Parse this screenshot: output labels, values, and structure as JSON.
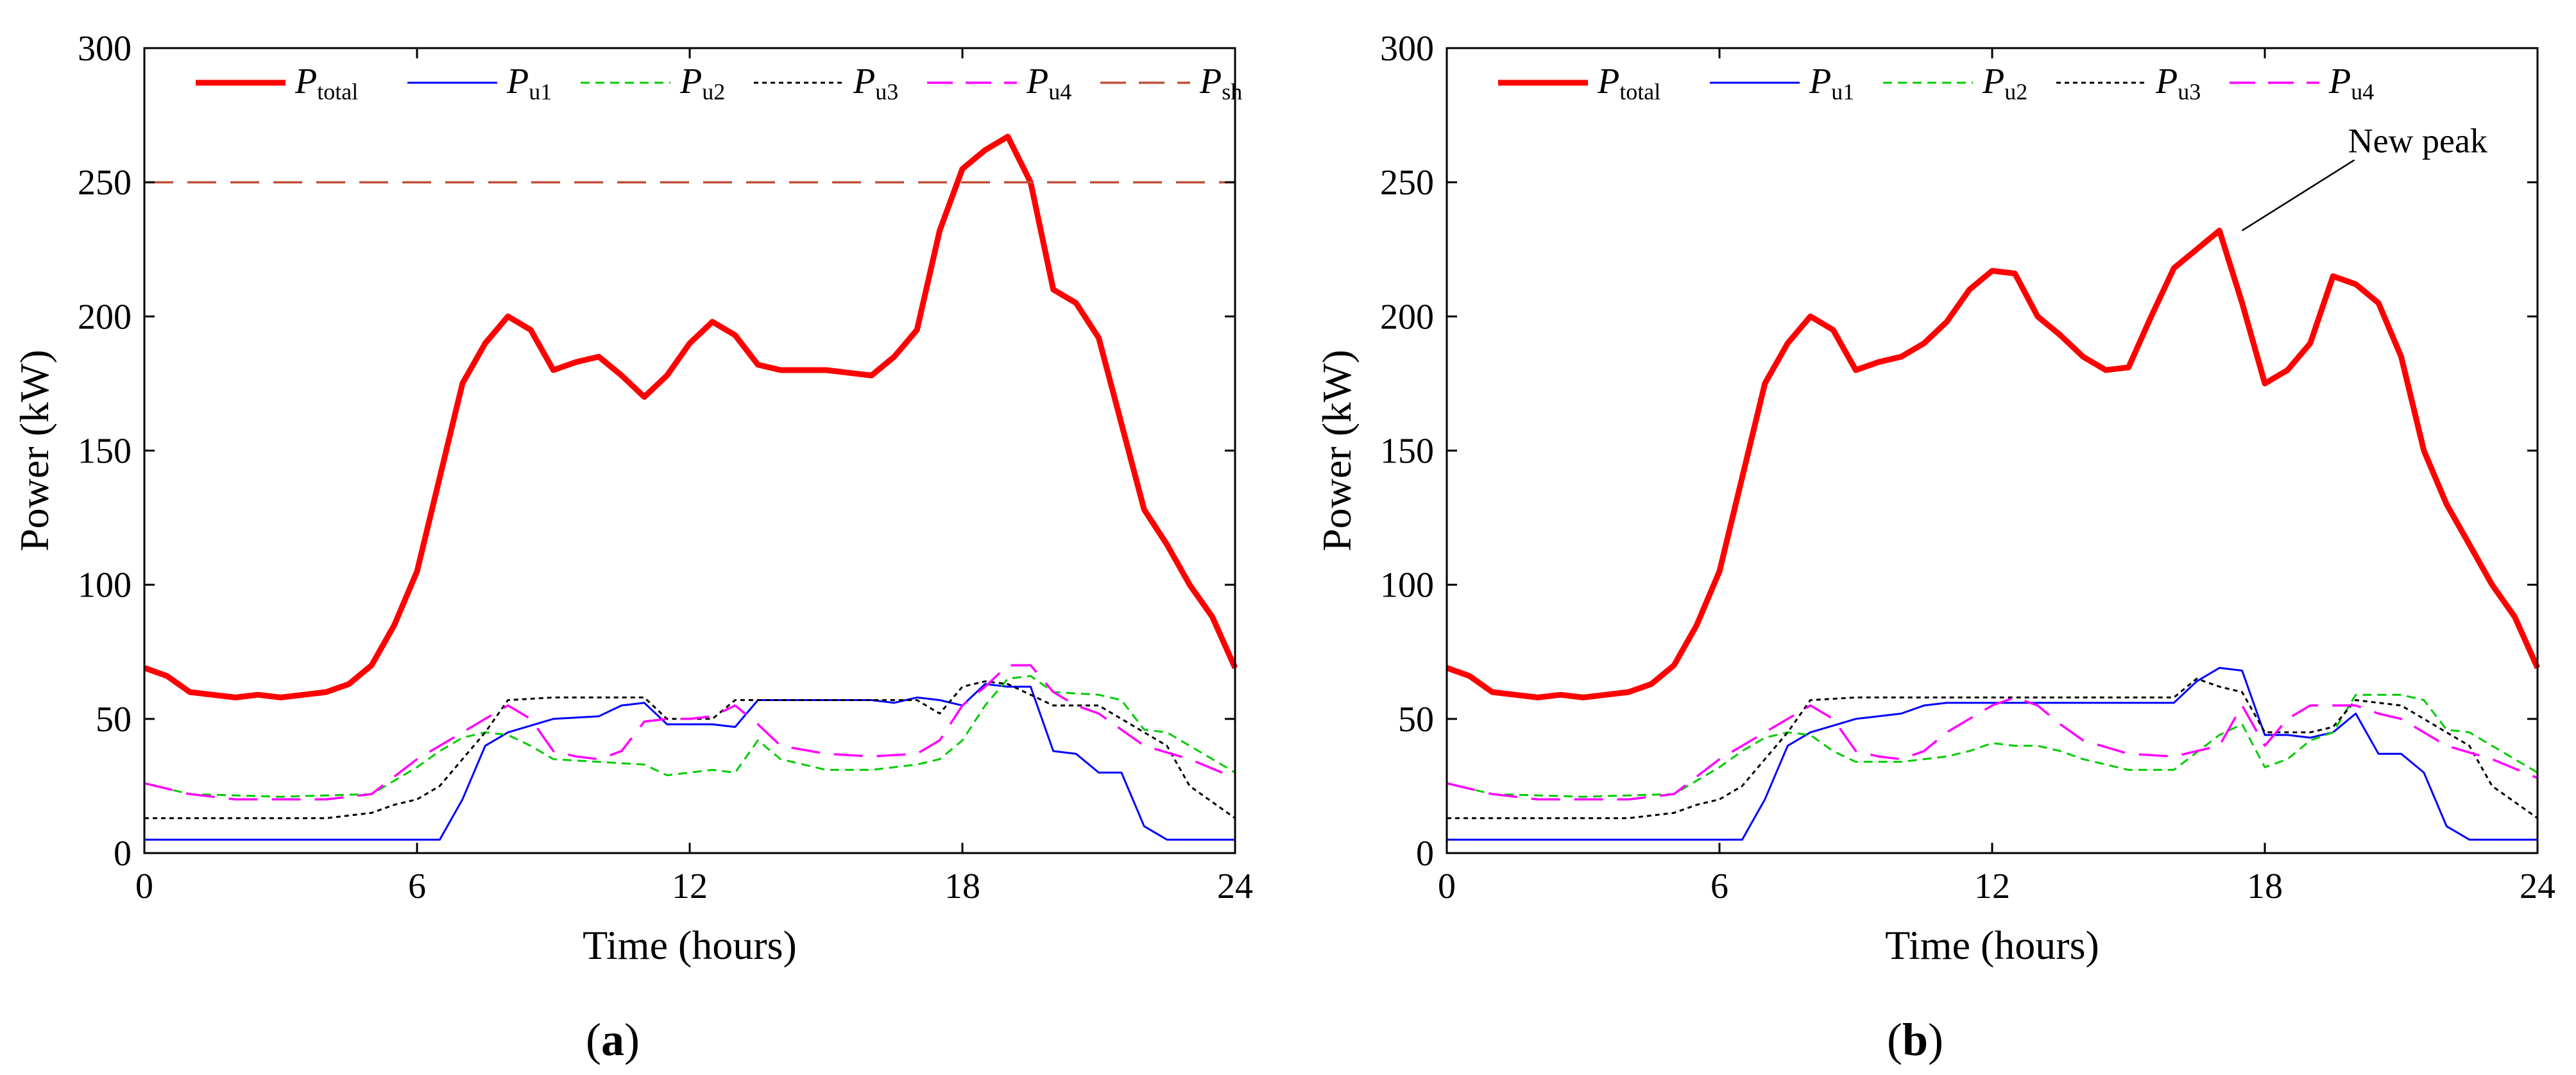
{
  "colors": {
    "P_total": "#ff0000",
    "P_u1": "#0000ff",
    "P_u2": "#00cc00",
    "P_u3": "#000000",
    "P_u4": "#ff00ff",
    "P_sh": "#c0503c"
  },
  "chart_data": [
    {
      "type": "line",
      "panel_label_open": "(",
      "panel_label": "a",
      "panel_label_close": ")",
      "xlabel": "Time (hours)",
      "ylabel": "Power (kW)",
      "xlim": [
        0,
        24
      ],
      "ylim": [
        0,
        300
      ],
      "xticks": [
        0,
        6,
        12,
        18,
        24
      ],
      "yticks": [
        0,
        50,
        100,
        150,
        200,
        250,
        300
      ],
      "grid": false,
      "legend_position": "top",
      "legend": [
        {
          "key": "P_total",
          "main": "P",
          "sub": "total"
        },
        {
          "key": "P_u1",
          "main": "P",
          "sub": "u1"
        },
        {
          "key": "P_u2",
          "main": "P",
          "sub": "u2"
        },
        {
          "key": "P_u3",
          "main": "P",
          "sub": "u3"
        },
        {
          "key": "P_u4",
          "main": "P",
          "sub": "u4"
        },
        {
          "key": "P_sh",
          "main": "P",
          "sub": "sh"
        }
      ],
      "series": [
        {
          "key": "P_total",
          "name": "P_total",
          "style": "solid-thick",
          "x": [
            0,
            0.5,
            1,
            1.5,
            2,
            2.5,
            3,
            3.5,
            4,
            4.5,
            5,
            5.5,
            6,
            6.5,
            7,
            7.5,
            8,
            8.5,
            9,
            9.5,
            10,
            10.5,
            11,
            11.5,
            12,
            12.5,
            13,
            13.5,
            14,
            14.5,
            15,
            15.5,
            16,
            16.5,
            17,
            17.5,
            18,
            18.5,
            19,
            19.5,
            20,
            20.5,
            21,
            21.5,
            22,
            22.5,
            23,
            23.5,
            24
          ],
          "values": [
            69,
            66,
            60,
            59,
            58,
            59,
            58,
            59,
            60,
            63,
            70,
            85,
            105,
            140,
            175,
            190,
            200,
            195,
            180,
            183,
            185,
            178,
            170,
            178,
            190,
            198,
            193,
            182,
            180,
            180,
            180,
            179,
            178,
            185,
            195,
            232,
            255,
            262,
            267,
            250,
            210,
            205,
            192,
            160,
            128,
            115,
            100,
            88,
            69
          ]
        },
        {
          "key": "P_u1",
          "name": "P_u1",
          "style": "solid-thin",
          "x": [
            0,
            3,
            6,
            6.5,
            7,
            7.5,
            8,
            9,
            10,
            10.5,
            11,
            11.5,
            12,
            12.5,
            13,
            13.5,
            14,
            15,
            16,
            16.5,
            17,
            17.5,
            18,
            18.5,
            19,
            19.5,
            20,
            20.5,
            21,
            21.5,
            22,
            22.5,
            24
          ],
          "values": [
            5,
            5,
            5,
            5,
            20,
            40,
            45,
            50,
            51,
            55,
            56,
            48,
            48,
            48,
            47,
            57,
            57,
            57,
            57,
            56,
            58,
            57,
            55,
            63,
            62,
            62,
            38,
            37,
            30,
            30,
            10,
            5,
            5
          ]
        },
        {
          "key": "P_u2",
          "name": "P_u2",
          "style": "dashed",
          "x": [
            0,
            1,
            3,
            5,
            6,
            6.5,
            7,
            7.5,
            8,
            8.5,
            9,
            10,
            11,
            11.5,
            12,
            12.5,
            13,
            13.5,
            14,
            15,
            16,
            17,
            17.5,
            18,
            18.5,
            19,
            19.5,
            20,
            21,
            21.5,
            22,
            22.5,
            23,
            24
          ],
          "values": [
            26,
            22,
            21,
            22,
            32,
            38,
            43,
            45,
            44,
            40,
            35,
            34,
            33,
            29,
            30,
            31,
            30,
            42,
            35,
            31,
            31,
            33,
            35,
            42,
            55,
            65,
            66,
            60,
            59,
            57,
            46,
            45,
            40,
            30
          ]
        },
        {
          "key": "P_u3",
          "name": "P_u3",
          "style": "dotted",
          "x": [
            0,
            2,
            4,
            5,
            5.5,
            6,
            6.5,
            7,
            7.5,
            8,
            9,
            10,
            11,
            11.5,
            12,
            12.5,
            13,
            14,
            15,
            16,
            17,
            17.5,
            18,
            18.5,
            19,
            19.5,
            20,
            21,
            21.5,
            22,
            22.5,
            23,
            24
          ],
          "values": [
            13,
            13,
            13,
            15,
            18,
            20,
            25,
            35,
            45,
            57,
            58,
            58,
            58,
            50,
            50,
            50,
            57,
            57,
            57,
            57,
            57,
            52,
            62,
            64,
            63,
            59,
            55,
            55,
            50,
            45,
            40,
            25,
            13
          ]
        },
        {
          "key": "P_u4",
          "name": "P_u4",
          "style": "long-dashed",
          "x": [
            0,
            1,
            2,
            3,
            4,
            5,
            6,
            6.5,
            7,
            7.5,
            8,
            8.5,
            9,
            9.5,
            10,
            10.5,
            11,
            11.5,
            12,
            12.5,
            13,
            13.5,
            14,
            15,
            16,
            17,
            17.5,
            18,
            18.5,
            19,
            19.5,
            20,
            20.5,
            21,
            22,
            23,
            24
          ],
          "values": [
            26,
            22,
            20,
            20,
            20,
            22,
            35,
            40,
            45,
            50,
            55,
            50,
            38,
            36,
            35,
            38,
            49,
            50,
            50,
            51,
            55,
            48,
            40,
            37,
            36,
            37,
            42,
            55,
            62,
            70,
            70,
            60,
            55,
            52,
            40,
            35,
            28
          ]
        },
        {
          "key": "P_sh",
          "name": "P_sh",
          "style": "threshold",
          "x": [
            0,
            24
          ],
          "values": [
            250,
            250
          ]
        }
      ],
      "annotation": null
    },
    {
      "type": "line",
      "panel_label_open": "(",
      "panel_label": "b",
      "panel_label_close": ")",
      "xlabel": "Time (hours)",
      "ylabel": "Power (kW)",
      "xlim": [
        0,
        24
      ],
      "ylim": [
        0,
        300
      ],
      "xticks": [
        0,
        6,
        12,
        18,
        24
      ],
      "yticks": [
        0,
        50,
        100,
        150,
        200,
        250,
        300
      ],
      "grid": false,
      "legend_position": "top",
      "legend": [
        {
          "key": "P_total",
          "main": "P",
          "sub": "total"
        },
        {
          "key": "P_u1",
          "main": "P",
          "sub": "u1"
        },
        {
          "key": "P_u2",
          "main": "P",
          "sub": "u2"
        },
        {
          "key": "P_u3",
          "main": "P",
          "sub": "u3"
        },
        {
          "key": "P_u4",
          "main": "P",
          "sub": "u4"
        }
      ],
      "series": [
        {
          "key": "P_total",
          "name": "P_total",
          "style": "solid-thick",
          "x": [
            0,
            0.5,
            1,
            1.5,
            2,
            2.5,
            3,
            3.5,
            4,
            4.5,
            5,
            5.5,
            6,
            6.5,
            7,
            7.5,
            8,
            8.5,
            9,
            9.5,
            10,
            10.5,
            11,
            11.5,
            12,
            12.5,
            13,
            13.5,
            14,
            14.5,
            15,
            15.5,
            16,
            16.5,
            17,
            17.5,
            18,
            18.5,
            19,
            19.5,
            20,
            20.5,
            21,
            21.5,
            22,
            22.5,
            23,
            23.5,
            24
          ],
          "values": [
            69,
            66,
            60,
            59,
            58,
            59,
            58,
            59,
            60,
            63,
            70,
            85,
            105,
            140,
            175,
            190,
            200,
            195,
            180,
            183,
            185,
            190,
            198,
            210,
            217,
            216,
            200,
            193,
            185,
            180,
            181,
            200,
            218,
            225,
            232,
            205,
            175,
            180,
            190,
            215,
            212,
            205,
            185,
            150,
            130,
            115,
            100,
            88,
            69
          ]
        },
        {
          "key": "P_u1",
          "name": "P_u1",
          "style": "solid-thin",
          "x": [
            0,
            3,
            6,
            6.5,
            7,
            7.5,
            8,
            9,
            10,
            10.5,
            11,
            12,
            13,
            14,
            15,
            16,
            16.5,
            17,
            17.5,
            18,
            18.5,
            19,
            19.5,
            20,
            20.5,
            21,
            21.5,
            22,
            22.5,
            24
          ],
          "values": [
            5,
            5,
            5,
            5,
            20,
            40,
            45,
            50,
            52,
            55,
            56,
            56,
            56,
            56,
            56,
            56,
            64,
            69,
            68,
            44,
            44,
            43,
            45,
            52,
            37,
            37,
            30,
            10,
            5,
            5
          ]
        },
        {
          "key": "P_u2",
          "name": "P_u2",
          "style": "dashed",
          "x": [
            0,
            1,
            3,
            5,
            6,
            6.5,
            7,
            7.5,
            8,
            8.5,
            9,
            10,
            11,
            11.5,
            12,
            12.5,
            13,
            13.5,
            14,
            15,
            16,
            17,
            17.5,
            18,
            18.5,
            19,
            19.5,
            20,
            21,
            21.5,
            22,
            22.5,
            23,
            24
          ],
          "values": [
            26,
            22,
            21,
            22,
            32,
            38,
            43,
            45,
            44,
            38,
            34,
            34,
            36,
            38,
            41,
            40,
            40,
            38,
            35,
            31,
            31,
            44,
            48,
            32,
            35,
            42,
            45,
            59,
            59,
            57,
            46,
            45,
            40,
            30
          ]
        },
        {
          "key": "P_u3",
          "name": "P_u3",
          "style": "dotted",
          "x": [
            0,
            2,
            4,
            5,
            5.5,
            6,
            6.5,
            7,
            7.5,
            8,
            9,
            10,
            11,
            12,
            13,
            14,
            15,
            16,
            16.5,
            17,
            17.5,
            18,
            18.5,
            19,
            19.5,
            20,
            21,
            21.5,
            22,
            22.5,
            23,
            24
          ],
          "values": [
            13,
            13,
            13,
            15,
            18,
            20,
            25,
            35,
            45,
            57,
            58,
            58,
            58,
            58,
            58,
            58,
            58,
            58,
            65,
            62,
            60,
            45,
            45,
            45,
            47,
            57,
            55,
            50,
            45,
            40,
            25,
            13
          ]
        },
        {
          "key": "P_u4",
          "name": "P_u4",
          "style": "long-dashed",
          "x": [
            0,
            1,
            2,
            3,
            4,
            5,
            6,
            6.5,
            7,
            7.5,
            8,
            8.5,
            9,
            9.5,
            10,
            10.5,
            11,
            11.5,
            12,
            12.5,
            13,
            13.5,
            14,
            15,
            16,
            17,
            17.5,
            18,
            18.5,
            19,
            19.5,
            20,
            20.5,
            21,
            22,
            23,
            24
          ],
          "values": [
            26,
            22,
            20,
            20,
            20,
            22,
            35,
            40,
            45,
            50,
            55,
            50,
            38,
            36,
            35,
            38,
            45,
            50,
            55,
            58,
            55,
            48,
            42,
            37,
            36,
            40,
            55,
            40,
            50,
            55,
            55,
            55,
            52,
            50,
            40,
            35,
            28
          ]
        }
      ],
      "annotation": {
        "text": "New peak",
        "x": 17.5,
        "y": 232
      }
    }
  ]
}
